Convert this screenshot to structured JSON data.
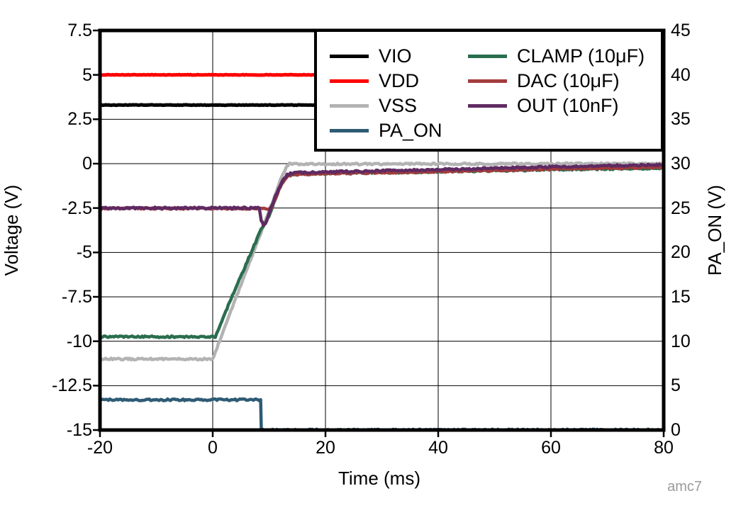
{
  "figure": {
    "watermark": "amc7"
  },
  "chart_data": {
    "type": "line",
    "title": "",
    "xlabel": "Time (ms)",
    "ylabel_left": "Voltage (V)",
    "ylabel_right": "PA_ON (V)",
    "xlim": [
      -20,
      80
    ],
    "ylim_left": [
      -15,
      7.5
    ],
    "ylim_right": [
      0,
      45
    ],
    "x_ticks": [
      -20,
      0,
      20,
      40,
      60,
      80
    ],
    "y_ticks_left": [
      7.5,
      5,
      2.5,
      0,
      -2.5,
      -5,
      -7.5,
      -10,
      -12.5,
      -15
    ],
    "y_ticks_right": [
      45,
      40,
      35,
      30,
      25,
      20,
      15,
      10,
      5,
      0
    ],
    "grid": true,
    "legend_position": "top-right",
    "series": [
      {
        "id": "vio",
        "name": "VIO",
        "color": "#000000",
        "axis": "left",
        "width": 5,
        "noise": 0.015,
        "points": [
          [
            -20,
            3.3
          ],
          [
            80,
            3.3
          ]
        ]
      },
      {
        "id": "vdd",
        "name": "VDD",
        "color": "#ff0000",
        "axis": "left",
        "width": 5,
        "noise": 0.015,
        "points": [
          [
            -20,
            5
          ],
          [
            80,
            5
          ]
        ]
      },
      {
        "id": "vss",
        "name": "VSS",
        "color": "#b3b3b3",
        "axis": "left",
        "width": 4.5,
        "noise": 0.05,
        "points": [
          [
            -20,
            -11
          ],
          [
            0,
            -11
          ],
          [
            10.5,
            -2.25
          ],
          [
            12,
            -0.9
          ],
          [
            13,
            -0.25
          ],
          [
            13.6,
            -0.02
          ],
          [
            80,
            0
          ]
        ]
      },
      {
        "id": "pa_on",
        "name": "PA_ON",
        "color": "#2e5b74",
        "axis": "right",
        "width": 4.5,
        "noise": 0.05,
        "points": [
          [
            -20,
            3.4
          ],
          [
            8.5,
            3.4
          ],
          [
            8.62,
            0
          ],
          [
            80,
            0
          ]
        ]
      },
      {
        "id": "clamp",
        "name": "CLAMP (10μF)",
        "color": "#2a6e4e",
        "axis": "left",
        "width": 4.5,
        "noise": 0.05,
        "points": [
          [
            -20,
            -9.75
          ],
          [
            0.45,
            -9.75
          ],
          [
            3,
            -7.8
          ],
          [
            8.8,
            -3.55
          ],
          [
            9.5,
            -3.3
          ],
          [
            10.2,
            -2.75
          ],
          [
            11,
            -2.05
          ],
          [
            12,
            -1.3
          ],
          [
            13,
            -0.78
          ],
          [
            13.9,
            -0.6
          ],
          [
            17,
            -0.56
          ],
          [
            30,
            -0.5
          ],
          [
            45,
            -0.42
          ],
          [
            60,
            -0.33
          ],
          [
            80,
            -0.25
          ]
        ]
      },
      {
        "id": "dac",
        "name": "DAC (10μF)",
        "color": "#a33c3c",
        "axis": "left",
        "width": 4.5,
        "noise": 0.05,
        "points": [
          [
            -20,
            -2.52
          ],
          [
            10.35,
            -2.52
          ],
          [
            11.2,
            -1.9
          ],
          [
            12.2,
            -1.15
          ],
          [
            13.2,
            -0.72
          ],
          [
            14,
            -0.62
          ],
          [
            17,
            -0.58
          ],
          [
            30,
            -0.5
          ],
          [
            45,
            -0.42
          ],
          [
            60,
            -0.3
          ],
          [
            80,
            -0.2
          ]
        ]
      },
      {
        "id": "out",
        "name": "OUT (10nF)",
        "color": "#5f2a62",
        "axis": "left",
        "width": 4.5,
        "noise": 0.05,
        "points": [
          [
            -20,
            -2.5
          ],
          [
            8.25,
            -2.5
          ],
          [
            8.6,
            -3.2
          ],
          [
            9.0,
            -3.45
          ],
          [
            9.35,
            -3.4
          ],
          [
            10.3,
            -2.5
          ],
          [
            11.2,
            -1.8
          ],
          [
            12.2,
            -1.05
          ],
          [
            13.2,
            -0.62
          ],
          [
            14,
            -0.52
          ],
          [
            17,
            -0.5
          ],
          [
            30,
            -0.4
          ],
          [
            45,
            -0.3
          ],
          [
            60,
            -0.18
          ],
          [
            80,
            -0.06
          ]
        ]
      }
    ]
  }
}
